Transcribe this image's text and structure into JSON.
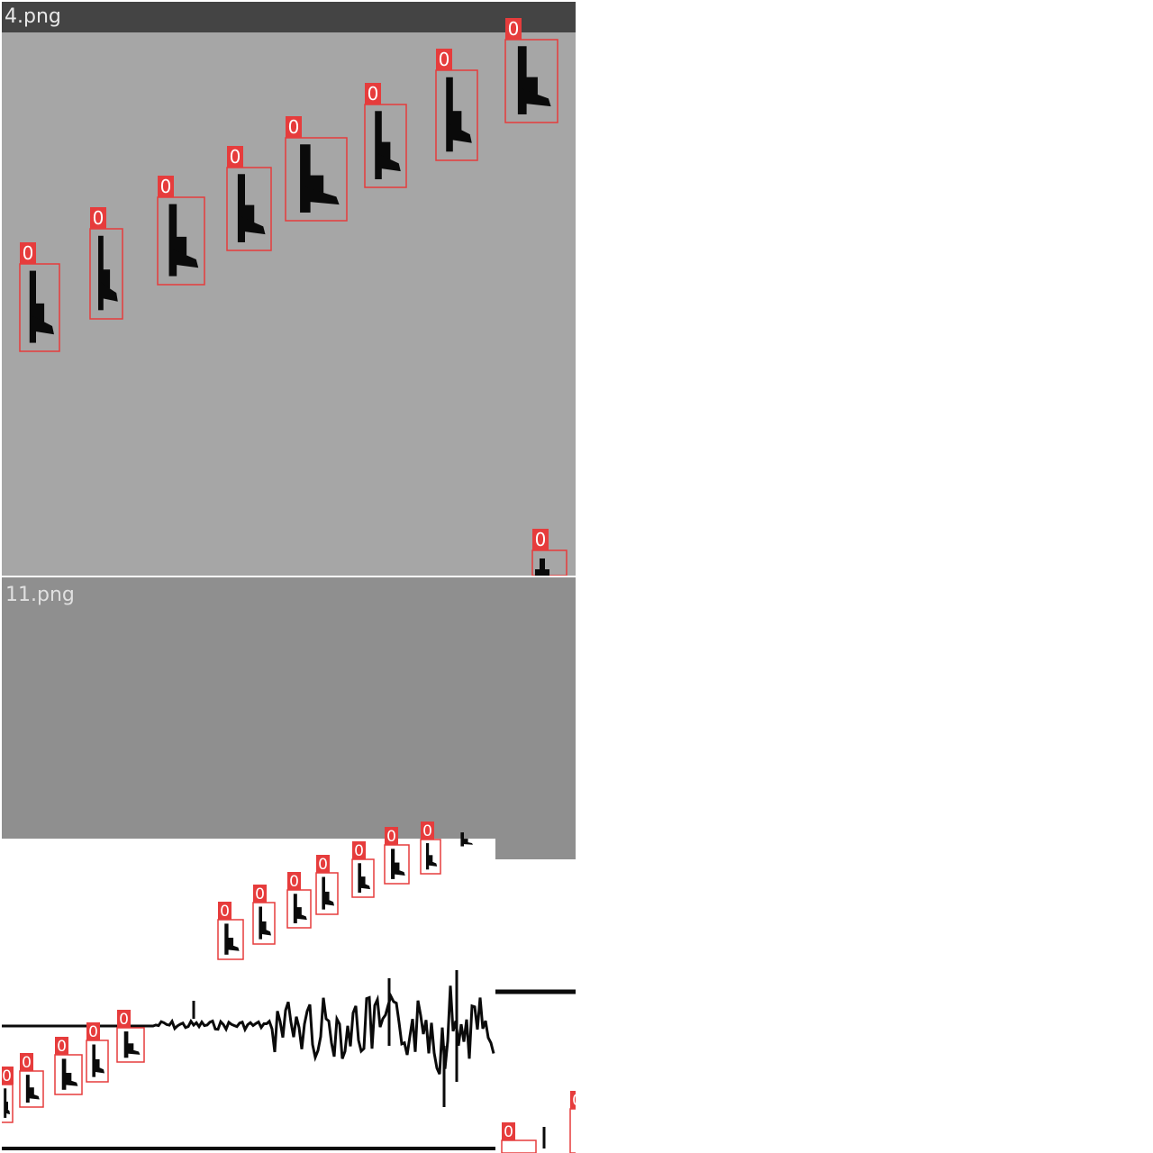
{
  "tiles": [
    {
      "title": "4.png",
      "detections": [
        {
          "label": "0"
        },
        {
          "label": "0"
        },
        {
          "label": "0"
        },
        {
          "label": "0"
        },
        {
          "label": "0"
        },
        {
          "label": "0"
        },
        {
          "label": "0"
        },
        {
          "label": "0"
        },
        {
          "label": "0"
        }
      ]
    },
    {
      "title": "11.png",
      "detections": [
        {
          "label": "0"
        },
        {
          "label": "0"
        },
        {
          "label": "0"
        },
        {
          "label": "0"
        },
        {
          "label": "0"
        },
        {
          "label": "0"
        },
        {
          "label": "0"
        },
        {
          "label": "0"
        },
        {
          "label": "0"
        },
        {
          "label": "0"
        },
        {
          "label": "0"
        },
        {
          "label": "0"
        },
        {
          "label": "0"
        },
        {
          "label": "0"
        },
        {
          "label": "0"
        }
      ]
    }
  ],
  "colors": {
    "box": "#e63c3c",
    "label_bg": "#e63c3c",
    "label_text": "#ffffff",
    "tile_top_bg": "#a6a6a6",
    "tile_bottom_gray": "#8f8f8f",
    "title_bar": "#444444",
    "silhouette": "#0a0a0a"
  }
}
